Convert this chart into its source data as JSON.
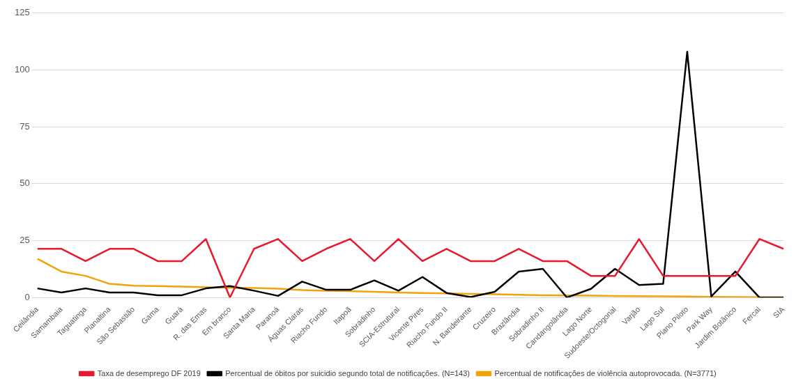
{
  "chart_data": {
    "type": "line",
    "categories": [
      "Ceilândia",
      "Samambaia",
      "Taguatinga",
      "Planaltina",
      "São Sebastião",
      "Gama",
      "Guará",
      "R. das Emas",
      "Em branco",
      "Santa Maria",
      "Paranoá",
      "Águas Claras",
      "Riacho Fundo",
      "Itapoã",
      "Sobradinho",
      "SCIA-Estrutural",
      "Vicente Pires",
      "Riacho Fundo II",
      "N. Bandeirante",
      "Cruzeiro",
      "Brazlândia",
      "Sobradinho II",
      "Candangolândia",
      "Lago Norte",
      "Sudoeste/Octogonal",
      "Varjão",
      "Lago Sul",
      "Plano Piloto",
      "Park Way",
      "Jardim Botânico",
      "Fercal",
      "SIA"
    ],
    "series": [
      {
        "name": "Taxa de desemprego DF 2019",
        "color": "#e8192c",
        "values": [
          21.4,
          21.4,
          16,
          21.4,
          21.4,
          16,
          16,
          25.7,
          0,
          21.4,
          25.7,
          16,
          21.4,
          25.7,
          16,
          25.7,
          16,
          21.4,
          16,
          16,
          21.4,
          16,
          16,
          9.5,
          9.5,
          25.7,
          9.5,
          9.5,
          9.5,
          9.5,
          25.7,
          21.4
        ]
      },
      {
        "name": "Percentual de óbitos por suicidio segundo total de notificações. (N=143)",
        "color": "#000000",
        "values": [
          4,
          2.2,
          4,
          2.2,
          2.2,
          1,
          1,
          4,
          5,
          3,
          0.7,
          7,
          3.4,
          3.4,
          7.5,
          3,
          9,
          2,
          0.2,
          2.5,
          11.4,
          12.6,
          0,
          3.8,
          12.6,
          5.5,
          6,
          108,
          0.5,
          11.4,
          0,
          0
        ]
      },
      {
        "name": "Percentual de notificações de violência autoprovocada. (N=3771)",
        "color": "#f0a30a",
        "values": [
          17,
          11.4,
          9.5,
          6,
          5.2,
          5,
          4.8,
          4.5,
          4.3,
          4.2,
          3.9,
          3.3,
          3,
          2.8,
          2.5,
          2.2,
          2,
          1.8,
          1.6,
          1.4,
          1.2,
          1,
          0.9,
          0.8,
          0.7,
          0.6,
          0.5,
          0.4,
          0.3,
          0.2,
          0.1,
          0.1
        ]
      }
    ],
    "ylim": [
      0,
      125
    ],
    "yticks": [
      0,
      25,
      50,
      75,
      100,
      125
    ],
    "grid": "y",
    "legend": "bottom",
    "marker": "none",
    "line_style": "solid"
  }
}
